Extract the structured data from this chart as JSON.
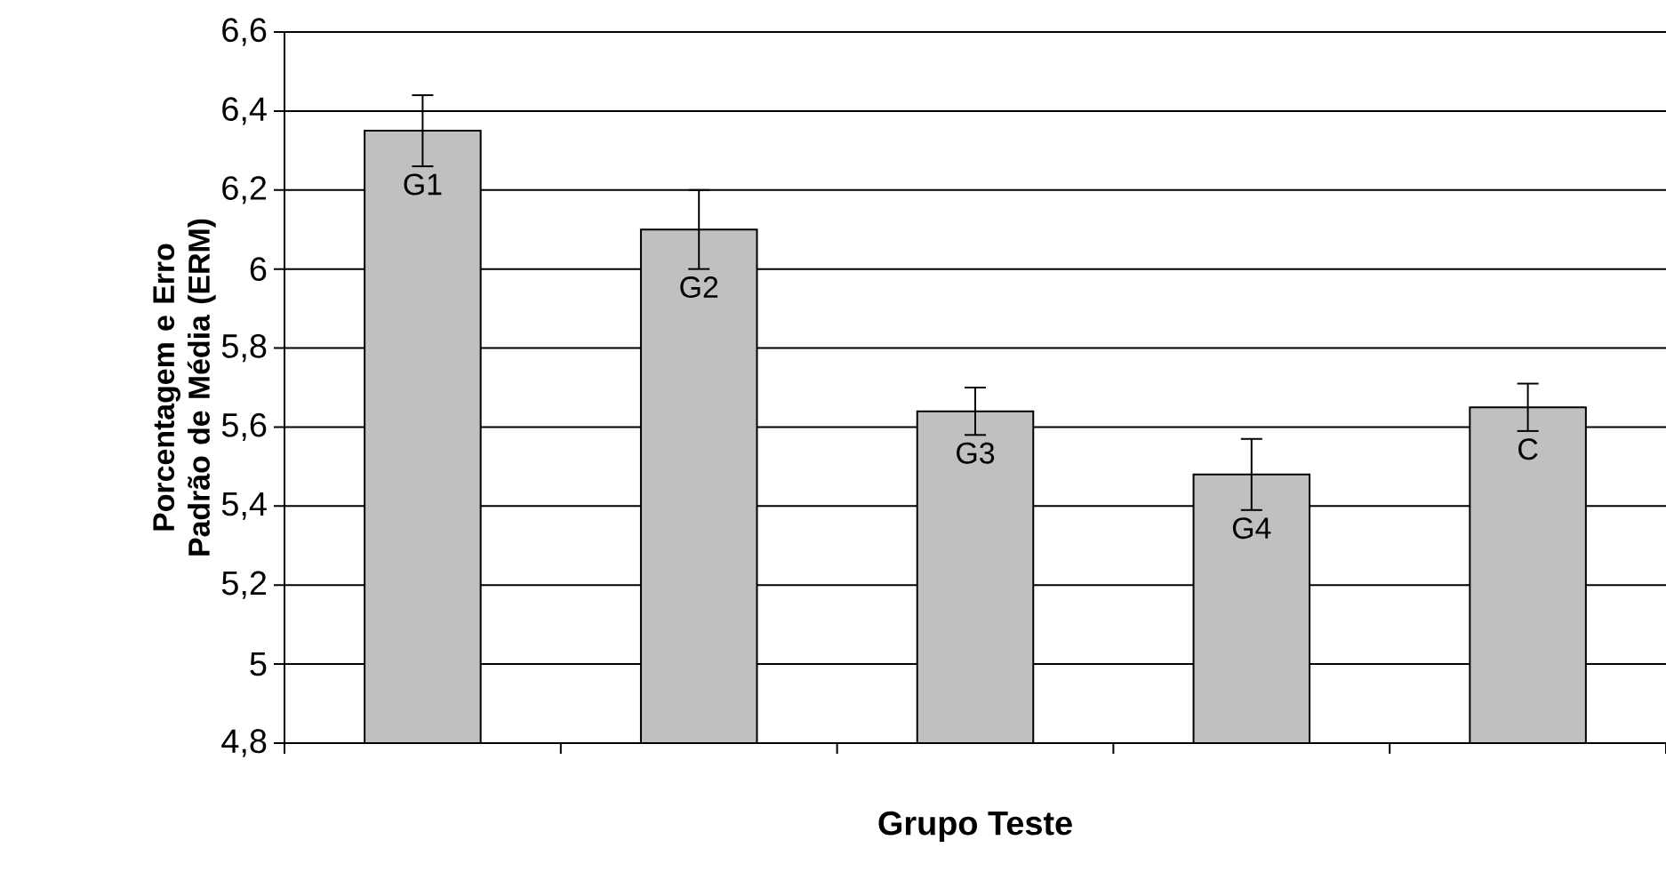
{
  "chart_data": {
    "type": "bar",
    "xlabel": "Grupo Teste",
    "ylabel": "Porcentagem e Erro Padrão de Média (ERM)",
    "categories": [
      "G1",
      "G2",
      "G3",
      "G4",
      "C"
    ],
    "values": [
      6.35,
      6.1,
      5.64,
      5.48,
      5.65
    ],
    "errors": [
      0.09,
      0.1,
      0.06,
      0.09,
      0.06
    ],
    "color": "#c0c0c0",
    "ylim": [
      4.8,
      6.6
    ],
    "yticks": [
      {
        "value": 4.8,
        "label": "4,8"
      },
      5,
      {
        "value": 5.2,
        "label": "5,2"
      },
      {
        "value": 5.4,
        "label": "5,4"
      },
      {
        "value": 5.6,
        "label": "5,6"
      },
      {
        "value": 5.8,
        "label": "5,8"
      },
      6,
      {
        "value": 6.2,
        "label": "6,2"
      },
      {
        "value": 6.4,
        "label": "6,4"
      },
      {
        "value": 6.6,
        "label": "6,6"
      }
    ],
    "grid": "y"
  }
}
